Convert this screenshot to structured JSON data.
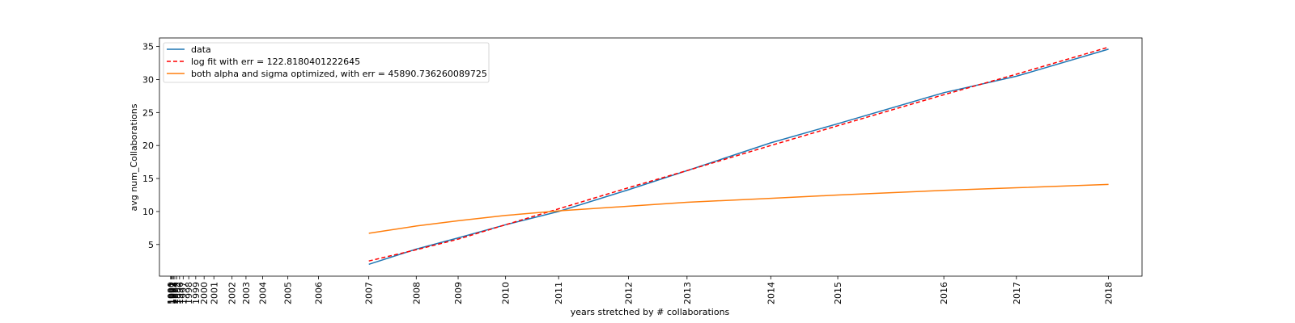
{
  "chart_data": {
    "type": "line",
    "xlabel": "years stretched by # collaborations",
    "ylabel": "avg num_Collaborations",
    "x_tick_labels": [
      "1990",
      "1991",
      "1992",
      "1993",
      "1994",
      "1995",
      "1996",
      "1997",
      "1998",
      "1999",
      "2000",
      "2001",
      "2002",
      "2003",
      "2004",
      "2005",
      "2006",
      "2007",
      "2008",
      "2009",
      "2010",
      "2011",
      "2012",
      "2013",
      "2014",
      "2015",
      "2016",
      "2017",
      "2018"
    ],
    "x_tick_positions": [
      0,
      0.3,
      0.6,
      1,
      1.5,
      2.2,
      3.2,
      4.5,
      6.5,
      9,
      12,
      15.5,
      22,
      27,
      33,
      42,
      53,
      71,
      88,
      103,
      120,
      139,
      164,
      185,
      215,
      239,
      277,
      303,
      336
    ],
    "xlim": [
      -4,
      348
    ],
    "ylim": [
      0.2,
      36.3
    ],
    "yticks": [
      5,
      10,
      15,
      20,
      25,
      30,
      35
    ],
    "grid": false,
    "legend_position": "upper left",
    "series": [
      {
        "name": "data",
        "color": "#1f77b4",
        "dash": "solid",
        "x": [
          71,
          88,
          103,
          120,
          139,
          164,
          185,
          215,
          239,
          277,
          303,
          336
        ],
        "y": [
          2.0,
          4.3,
          6.0,
          8.0,
          10.0,
          13.3,
          16.2,
          20.4,
          23.3,
          28.0,
          30.5,
          34.6
        ]
      },
      {
        "name": "log fit with err = 122.8180401222645",
        "color": "#ff0000",
        "dash": "dashed",
        "x": [
          71,
          88,
          103,
          120,
          139,
          164,
          185,
          215,
          239,
          277,
          303,
          336
        ],
        "y": [
          2.5,
          4.2,
          5.8,
          8.0,
          10.4,
          13.6,
          16.2,
          20.0,
          23.0,
          27.7,
          30.8,
          34.9
        ]
      },
      {
        "name": "both alpha and sigma optimized, with err = 45890.736260089725",
        "color": "#ff7f0e",
        "dash": "solid",
        "x": [
          71,
          88,
          103,
          120,
          139,
          164,
          185,
          215,
          239,
          277,
          303,
          336
        ],
        "y": [
          6.7,
          7.8,
          8.6,
          9.4,
          10.1,
          10.8,
          11.4,
          12.0,
          12.5,
          13.2,
          13.6,
          14.1
        ]
      }
    ]
  }
}
